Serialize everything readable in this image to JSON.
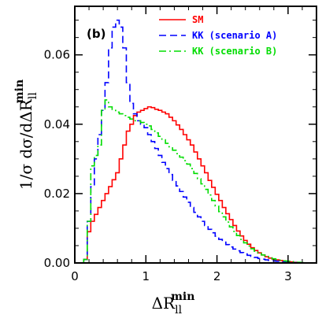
{
  "chart_data": {
    "type": "line",
    "panel_label": "(b)",
    "xlabel": {
      "main": "ΔR",
      "sub": "ll",
      "sup": "min"
    },
    "ylabel": {
      "main": "1/σ  dσ/dΔR",
      "sub": "ll",
      "sup": "min"
    },
    "xlim": [
      0,
      3.4
    ],
    "ylim": [
      0,
      0.074
    ],
    "xticks": [
      0,
      1,
      2,
      3
    ],
    "xtick_labels": [
      "0",
      "1",
      "2",
      "3"
    ],
    "yticks": [
      0,
      0.02,
      0.04,
      0.06
    ],
    "ytick_labels": [
      "0.00",
      "0.02",
      "0.04",
      "0.06"
    ],
    "legend_position": "top-right",
    "x": [
      0.15,
      0.2,
      0.25,
      0.3,
      0.35,
      0.4,
      0.45,
      0.5,
      0.55,
      0.6,
      0.65,
      0.7,
      0.75,
      0.8,
      0.85,
      0.9,
      0.95,
      1.0,
      1.05,
      1.1,
      1.15,
      1.2,
      1.25,
      1.3,
      1.35,
      1.4,
      1.45,
      1.5,
      1.55,
      1.6,
      1.65,
      1.7,
      1.75,
      1.8,
      1.85,
      1.9,
      1.95,
      2.0,
      2.05,
      2.1,
      2.15,
      2.2,
      2.25,
      2.3,
      2.35,
      2.4,
      2.45,
      2.5,
      2.55,
      2.6,
      2.65,
      2.7,
      2.75,
      2.8,
      2.85,
      2.9,
      2.95,
      3.0,
      3.05,
      3.1,
      3.15,
      3.2,
      3.25,
      3.3
    ],
    "series": [
      {
        "name": "SM",
        "color": "#ff0000",
        "dash": "solid",
        "values": [
          0.001,
          0.009,
          0.012,
          0.014,
          0.016,
          0.018,
          0.02,
          0.022,
          0.024,
          0.026,
          0.03,
          0.034,
          0.038,
          0.04,
          0.0425,
          0.0435,
          0.044,
          0.0445,
          0.045,
          0.0448,
          0.0443,
          0.044,
          0.0435,
          0.043,
          0.042,
          0.041,
          0.0398,
          0.0385,
          0.037,
          0.0355,
          0.034,
          0.032,
          0.03,
          0.028,
          0.026,
          0.0238,
          0.0218,
          0.0198,
          0.018,
          0.016,
          0.0142,
          0.0125,
          0.0108,
          0.0092,
          0.0078,
          0.0065,
          0.0054,
          0.0044,
          0.0036,
          0.0029,
          0.0023,
          0.0018,
          0.0014,
          0.0011,
          0.0009,
          0.0007,
          0.0005,
          0.0004,
          0.0003,
          0.0002,
          0.0001,
          0,
          0,
          0
        ]
      },
      {
        "name": "KK (scenario A)",
        "color": "#0000ff",
        "dash": "dashed",
        "values": [
          0.001,
          0.012,
          0.022,
          0.03,
          0.037,
          0.044,
          0.052,
          0.062,
          0.068,
          0.07,
          0.068,
          0.062,
          0.052,
          0.046,
          0.043,
          0.041,
          0.04,
          0.039,
          0.037,
          0.035,
          0.033,
          0.031,
          0.029,
          0.0272,
          0.0255,
          0.0238,
          0.0222,
          0.0206,
          0.019,
          0.0175,
          0.016,
          0.0146,
          0.0133,
          0.012,
          0.0108,
          0.0097,
          0.0087,
          0.0077,
          0.0068,
          0.006,
          0.0053,
          0.0046,
          0.004,
          0.0035,
          0.003,
          0.0026,
          0.0022,
          0.0019,
          0.0016,
          0.0013,
          0.0011,
          0.0009,
          0.0007,
          0.0006,
          0.0005,
          0.0004,
          0.0003,
          0.0002,
          0.0002,
          0.0001,
          0.0001,
          0,
          0,
          0
        ]
      },
      {
        "name": "KK (scenario B)",
        "color": "#00dd00",
        "dash": "dashdot",
        "values": [
          0.001,
          0.012,
          0.028,
          0.031,
          0.034,
          0.044,
          0.047,
          0.045,
          0.044,
          0.0435,
          0.043,
          0.0425,
          0.042,
          0.0415,
          0.041,
          0.041,
          0.0405,
          0.04,
          0.0395,
          0.0385,
          0.0375,
          0.0365,
          0.0355,
          0.0345,
          0.0335,
          0.0325,
          0.0315,
          0.0305,
          0.0295,
          0.0285,
          0.0272,
          0.0258,
          0.0243,
          0.0228,
          0.0212,
          0.0196,
          0.018,
          0.0164,
          0.0148,
          0.0133,
          0.0118,
          0.0104,
          0.0091,
          0.0079,
          0.0068,
          0.0058,
          0.0049,
          0.0041,
          0.0034,
          0.0028,
          0.0023,
          0.0019,
          0.0015,
          0.0012,
          0.001,
          0.0008,
          0.0006,
          0.0005,
          0.0004,
          0.0003,
          0.0002,
          0.0001,
          0,
          0
        ]
      }
    ]
  }
}
